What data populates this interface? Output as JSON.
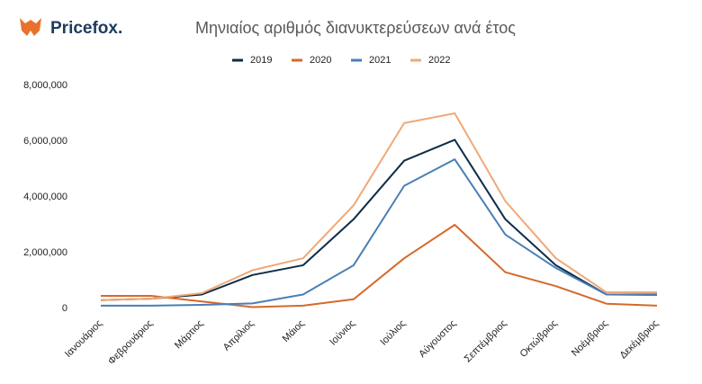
{
  "brand": "Pricefox.",
  "chart_data": {
    "type": "line",
    "title": "Μηνιαίος αριθμός διανυκτερεύσεων ανά έτος",
    "categories": [
      "Ιανουάριος",
      "Φεβρουάριος",
      "Μάρτιος",
      "Απρίλιος",
      "Μάιος",
      "Ιούνιος",
      "Ιούλιος",
      "Αύγουστος",
      "Σεπτέμβριος",
      "Οκτώβριος",
      "Νοέμβριος",
      "Δεκέμβριος"
    ],
    "series": [
      {
        "name": "2019",
        "color": "#0d2d4a",
        "values": [
          300000,
          350000,
          500000,
          1200000,
          1550000,
          3200000,
          5300000,
          6050000,
          3200000,
          1550000,
          500000,
          500000
        ]
      },
      {
        "name": "2020",
        "color": "#d4692c",
        "values": [
          450000,
          450000,
          250000,
          50000,
          100000,
          330000,
          1800000,
          3000000,
          1300000,
          800000,
          170000,
          100000
        ]
      },
      {
        "name": "2021",
        "color": "#4a7fb5",
        "values": [
          100000,
          100000,
          130000,
          180000,
          500000,
          1550000,
          4400000,
          5350000,
          2650000,
          1450000,
          500000,
          480000
        ]
      },
      {
        "name": "2022",
        "color": "#f0a878",
        "values": [
          300000,
          350000,
          550000,
          1370000,
          1800000,
          3700000,
          6650000,
          7000000,
          3850000,
          1800000,
          580000,
          580000
        ]
      }
    ],
    "ylim": [
      0,
      8000000
    ],
    "yticks": [
      0,
      {
        "value": 2000000,
        "label": "2,000,000"
      },
      {
        "value": 4000000,
        "label": "4,000,000"
      },
      {
        "value": 6000000,
        "label": "6,000,000"
      },
      {
        "value": 8000000,
        "label": "8,000,000"
      }
    ],
    "grid": false,
    "legend": "top"
  }
}
